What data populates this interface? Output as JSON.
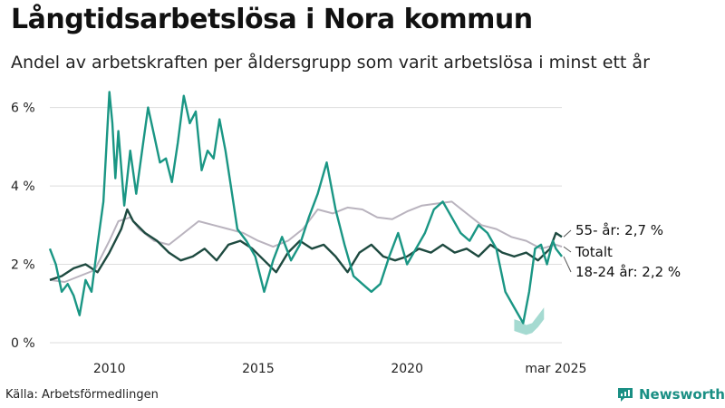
{
  "title": "Långtidsarbetslösa i Nora kommun",
  "subtitle": "Andel av arbetskraften per åldersgrupp som varit arbetslösa i minst ett år",
  "source": "Källa: Arbetsförmedlingen",
  "brand": "Newsworthy",
  "colors": {
    "age_55_plus": "#1e4a40",
    "total": "#b9b3be",
    "age_18_24": "#1a9684",
    "band": "#8fd1c5",
    "grid": "#dddddd",
    "brand": "#1a8f84"
  },
  "chart_data": {
    "type": "line",
    "x_label": "",
    "y_label": "",
    "ylim": [
      0,
      6.2
    ],
    "xlim": [
      2008.0,
      2025.2
    ],
    "y_ticks": [
      0,
      2,
      4,
      6
    ],
    "y_tick_labels": [
      "0 %",
      "2 %",
      "4 %",
      "6 %"
    ],
    "x_ticks": [
      2010,
      2015,
      2020,
      2025
    ],
    "x_tick_labels": [
      "2010",
      "2015",
      "2020",
      "mar 2025"
    ],
    "grid": true,
    "legend": "direct labels at right end of lines",
    "series": [
      {
        "key": "total",
        "name": "Totalt",
        "end_label": "Totalt",
        "x": [
          2008.0,
          2008.5,
          2009.0,
          2009.5,
          2010.0,
          2010.3,
          2010.7,
          2011.0,
          2011.5,
          2012.0,
          2012.5,
          2013.0,
          2013.5,
          2014.0,
          2014.5,
          2015.0,
          2015.5,
          2016.0,
          2016.5,
          2017.0,
          2017.5,
          2018.0,
          2018.5,
          2019.0,
          2019.5,
          2020.0,
          2020.5,
          2021.0,
          2021.5,
          2022.0,
          2022.5,
          2023.0,
          2023.5,
          2024.0,
          2024.5,
          2025.0,
          2025.2
        ],
        "y": [
          1.6,
          1.55,
          1.7,
          1.85,
          2.6,
          3.1,
          3.2,
          2.9,
          2.6,
          2.5,
          2.8,
          3.1,
          3.0,
          2.9,
          2.8,
          2.6,
          2.45,
          2.6,
          2.9,
          3.4,
          3.3,
          3.45,
          3.4,
          3.2,
          3.15,
          3.35,
          3.5,
          3.55,
          3.6,
          3.3,
          3.0,
          2.9,
          2.7,
          2.6,
          2.4,
          2.5,
          2.45
        ]
      },
      {
        "key": "age_55_plus",
        "name": "55- år",
        "end_label": "55- år: 2,7 %",
        "x": [
          2008.0,
          2008.4,
          2008.8,
          2009.2,
          2009.6,
          2010.0,
          2010.4,
          2010.6,
          2010.8,
          2011.2,
          2011.6,
          2012.0,
          2012.4,
          2012.8,
          2013.2,
          2013.6,
          2014.0,
          2014.4,
          2014.8,
          2015.2,
          2015.6,
          2016.0,
          2016.4,
          2016.8,
          2017.2,
          2017.6,
          2018.0,
          2018.4,
          2018.8,
          2019.2,
          2019.6,
          2020.0,
          2020.4,
          2020.8,
          2021.2,
          2021.6,
          2022.0,
          2022.4,
          2022.8,
          2023.2,
          2023.6,
          2024.0,
          2024.4,
          2024.8,
          2025.0,
          2025.2
        ],
        "y": [
          1.6,
          1.7,
          1.9,
          2.0,
          1.8,
          2.3,
          2.9,
          3.4,
          3.1,
          2.8,
          2.6,
          2.3,
          2.1,
          2.2,
          2.4,
          2.1,
          2.5,
          2.6,
          2.4,
          2.1,
          1.8,
          2.3,
          2.6,
          2.4,
          2.5,
          2.2,
          1.8,
          2.3,
          2.5,
          2.2,
          2.1,
          2.2,
          2.4,
          2.3,
          2.5,
          2.3,
          2.4,
          2.2,
          2.5,
          2.3,
          2.2,
          2.3,
          2.1,
          2.4,
          2.8,
          2.7
        ]
      },
      {
        "key": "age_18_24",
        "name": "18-24 år",
        "end_label": "18-24 år: 2,2 %",
        "x": [
          2008.0,
          2008.2,
          2008.4,
          2008.6,
          2008.8,
          2009.0,
          2009.2,
          2009.4,
          2009.6,
          2009.8,
          2010.0,
          2010.1,
          2010.2,
          2010.3,
          2010.5,
          2010.7,
          2010.9,
          2011.1,
          2011.3,
          2011.5,
          2011.7,
          2011.9,
          2012.1,
          2012.3,
          2012.5,
          2012.7,
          2012.9,
          2013.1,
          2013.3,
          2013.5,
          2013.7,
          2013.9,
          2014.1,
          2014.3,
          2014.6,
          2014.9,
          2015.2,
          2015.5,
          2015.8,
          2016.1,
          2016.4,
          2016.7,
          2017.0,
          2017.3,
          2017.6,
          2017.9,
          2018.2,
          2018.5,
          2018.8,
          2019.1,
          2019.4,
          2019.7,
          2020.0,
          2020.3,
          2020.6,
          2020.9,
          2021.2,
          2021.5,
          2021.8,
          2022.1,
          2022.4,
          2022.7,
          2023.0,
          2023.3,
          2023.6,
          2023.9,
          2024.1,
          2024.3,
          2024.5,
          2024.7,
          2024.9,
          2025.0,
          2025.2
        ],
        "y": [
          2.4,
          2.0,
          1.3,
          1.5,
          1.2,
          0.7,
          1.6,
          1.3,
          2.5,
          3.6,
          6.4,
          5.6,
          4.2,
          5.4,
          3.5,
          4.9,
          3.8,
          4.9,
          6.0,
          5.3,
          4.6,
          4.7,
          4.1,
          5.1,
          6.3,
          5.6,
          5.9,
          4.4,
          4.9,
          4.7,
          5.7,
          4.9,
          3.9,
          2.9,
          2.6,
          2.2,
          1.3,
          2.1,
          2.7,
          2.1,
          2.5,
          3.2,
          3.8,
          4.6,
          3.4,
          2.5,
          1.7,
          1.5,
          1.3,
          1.5,
          2.2,
          2.8,
          2.0,
          2.4,
          2.8,
          3.4,
          3.6,
          3.2,
          2.8,
          2.6,
          3.0,
          2.8,
          2.4,
          1.3,
          0.9,
          0.5,
          1.3,
          2.4,
          2.5,
          2.0,
          2.6,
          2.4,
          2.2
        ]
      }
    ],
    "band": {
      "label": "",
      "x": [
        2023.6,
        2023.8,
        2024.0,
        2024.2,
        2024.4,
        2024.6
      ],
      "upper": [
        0.6,
        0.55,
        0.45,
        0.5,
        0.7,
        0.9
      ],
      "lower": [
        0.3,
        0.25,
        0.2,
        0.25,
        0.4,
        0.6
      ]
    }
  }
}
